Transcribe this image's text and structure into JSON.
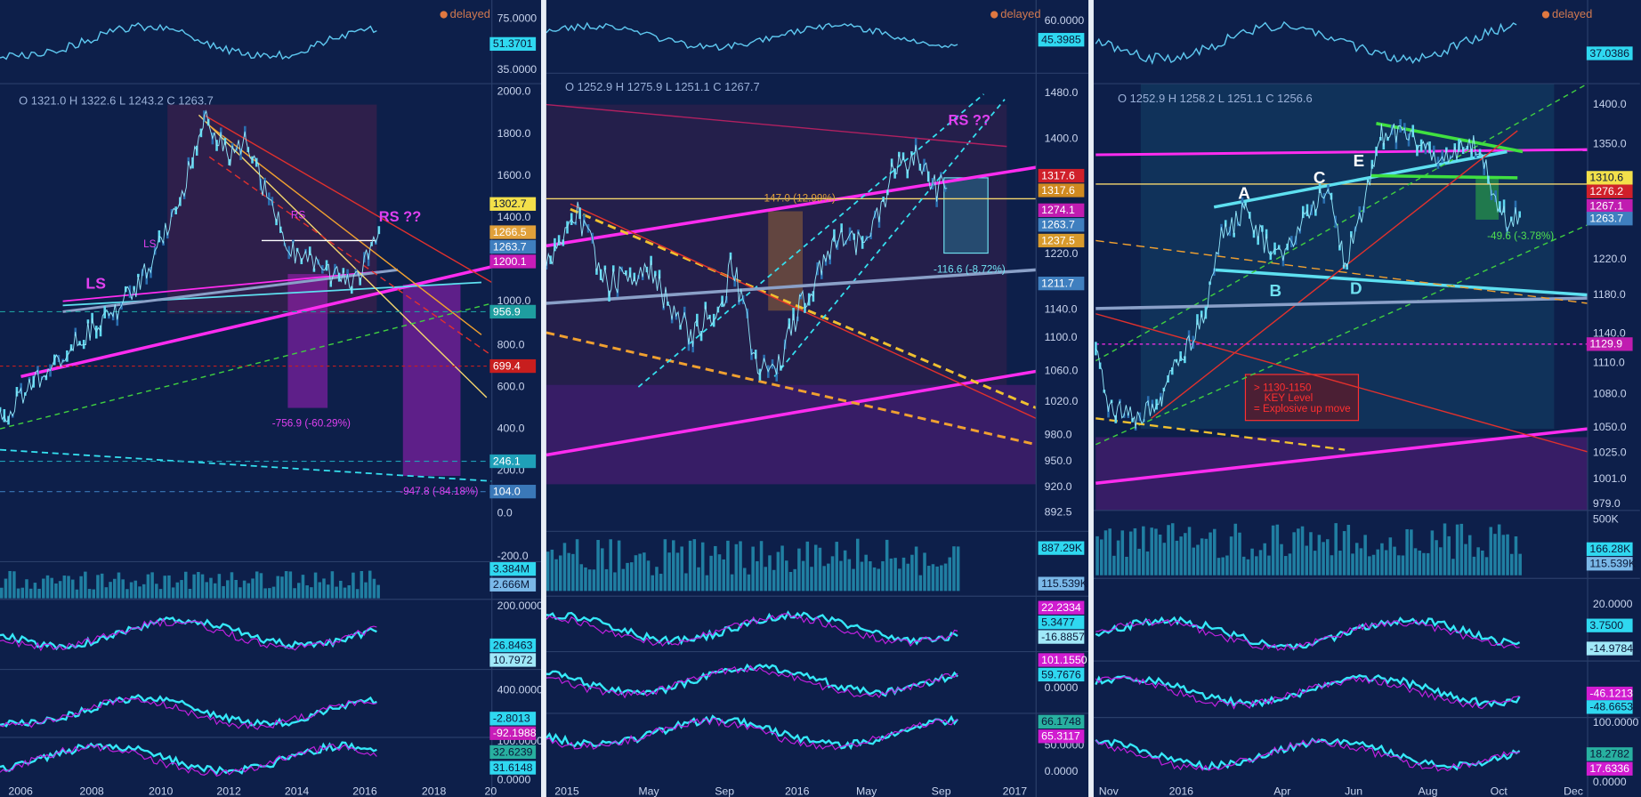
{
  "panels": [
    {
      "ohlc": "O 1321.0  H 1322.6  L 1243.2  C 1263.7",
      "delayed": "delayed",
      "axis_labels": [
        "75.0000",
        "35.0000",
        "2000.0",
        "1800.0",
        "1600.0",
        "1400.0",
        "1000.0",
        "800.0",
        "600.0",
        "400.0",
        "200.0",
        "0.0",
        "-200.0",
        "200.0000",
        "400.0000",
        "100.0000",
        "0.0000"
      ],
      "tags": [
        {
          "text": "1302.7",
          "color": "#f3e04a"
        },
        {
          "text": "1266.5",
          "color": "#e0a03a"
        },
        {
          "text": "1263.7",
          "color": "#3f7fbf"
        },
        {
          "text": "1200.1",
          "color": "#c81cb8"
        },
        {
          "text": "956.9",
          "color": "#1e9ea0"
        },
        {
          "text": "699.4",
          "color": "#c81e1e"
        },
        {
          "text": "246.1",
          "color": "#1fa0b8"
        },
        {
          "text": "104.0",
          "color": "#3a78b8"
        },
        {
          "text": "51.3701",
          "color": "#2fd8f0"
        },
        {
          "text": "3.384M",
          "color": "#2fd8f0"
        },
        {
          "text": "2.666M",
          "color": "#7ab8e8"
        },
        {
          "text": "26.8463",
          "color": "#2fd8f0"
        },
        {
          "text": "10.7972",
          "color": "#a0e8f8"
        },
        {
          "text": "-2.8013",
          "color": "#2fd8f0"
        },
        {
          "text": "-92.1988",
          "color": "#c81cb8"
        },
        {
          "text": "32.6239",
          "color": "#28b0a0"
        },
        {
          "text": "31.6148",
          "color": "#2fd8f0"
        }
      ],
      "annotations": [
        {
          "text": "LS",
          "color": "#e040f0"
        },
        {
          "text": "LS",
          "color": "#e040f0"
        },
        {
          "text": "RS",
          "color": "#e040f0"
        },
        {
          "text": "RS ??",
          "color": "#e040f0"
        },
        {
          "text": "-756.9 (-60.29%)",
          "color": "#e040f0"
        },
        {
          "text": "-947.8 (-84.18%)",
          "color": "#e040f0"
        }
      ],
      "time_labels": [
        "2006",
        "2008",
        "2010",
        "2012",
        "2014",
        "2016",
        "2018",
        "20"
      ]
    },
    {
      "ohlc": "O 1252.9  H 1275.9  L 1251.1  C 1267.7",
      "delayed": "delayed",
      "axis_labels": [
        "60.0000",
        "1480.0",
        "1400.0",
        "1220.0",
        "1140.0",
        "1100.0",
        "1060.0",
        "1020.0",
        "980.0",
        "950.0",
        "920.0",
        "892.5",
        "0.0000",
        "50.0000",
        "0.0000"
      ],
      "tags": [
        {
          "text": "1317.6",
          "color": "#d0202a"
        },
        {
          "text": "1317.6",
          "color": "#d08a20"
        },
        {
          "text": "1274.1",
          "color": "#c01cb0"
        },
        {
          "text": "1263.7",
          "color": "#3f7fbf"
        },
        {
          "text": "1237.5",
          "color": "#d89a2c"
        },
        {
          "text": "1211.7",
          "color": "#3f7fbf"
        },
        {
          "text": "45.3985",
          "color": "#2fd8f0"
        },
        {
          "text": "887.29K",
          "color": "#2fd8f0"
        },
        {
          "text": "115.539K",
          "color": "#7ab8e8"
        },
        {
          "text": "22.2334",
          "color": "#d01cd0"
        },
        {
          "text": "5.3477",
          "color": "#2fd8f0"
        },
        {
          "text": "-16.8857",
          "color": "#a0e8f8"
        },
        {
          "text": "101.1550",
          "color": "#d01cd0"
        },
        {
          "text": "59.7676",
          "color": "#2fd8f0"
        },
        {
          "text": "66.1748",
          "color": "#28b0a0"
        },
        {
          "text": "65.3117",
          "color": "#d01cd0"
        }
      ],
      "annotations": [
        {
          "text": "RS ??",
          "color": "#e040f0"
        },
        {
          "text": "147.0 (12.99%)",
          "color": "#e0a03a"
        },
        {
          "text": "-116.6 (-8.72%)",
          "color": "#6fe0f0"
        }
      ],
      "time_labels": [
        "2015",
        "May",
        "Sep",
        "2016",
        "May",
        "Sep",
        "2017"
      ]
    },
    {
      "ohlc": "O 1252.9  H 1258.2  L 1251.1  C 1256.6",
      "delayed": "delayed",
      "axis_labels": [
        "1400.0",
        "1350.0",
        "1220.0",
        "1180.0",
        "1140.0",
        "1110.0",
        "1080.0",
        "1050.0",
        "1025.0",
        "1001.0",
        "979.0",
        "500K",
        "20.0000",
        "100.0000",
        "0.0000"
      ],
      "tags": [
        {
          "text": "1310.6",
          "color": "#f3e04a"
        },
        {
          "text": "1276.2",
          "color": "#d0202a"
        },
        {
          "text": "1267.1",
          "color": "#c01cb0"
        },
        {
          "text": "1263.7",
          "color": "#3f7fbf"
        },
        {
          "text": "1129.9",
          "color": "#c01cb0"
        },
        {
          "text": "37.0386",
          "color": "#2fd8f0"
        },
        {
          "text": "166.28K",
          "color": "#2fd8f0"
        },
        {
          "text": "115.539K",
          "color": "#7ab8e8"
        },
        {
          "text": "3.7500",
          "color": "#2fd8f0"
        },
        {
          "text": "-14.9784",
          "color": "#a0e8f8"
        },
        {
          "text": "-46.1213",
          "color": "#d01cd0"
        },
        {
          "text": "-48.6653",
          "color": "#2fd8f0"
        },
        {
          "text": "18.2782",
          "color": "#28b0a0"
        },
        {
          "text": "17.6336",
          "color": "#d01cd0"
        }
      ],
      "annotations": [
        {
          "text": "A",
          "color": "#ffffff"
        },
        {
          "text": "B",
          "color": "#6fe0f0"
        },
        {
          "text": "C",
          "color": "#ffffff"
        },
        {
          "text": "D",
          "color": "#6fe0f0"
        },
        {
          "text": "E",
          "color": "#ffffff"
        },
        {
          "text": "-49.6 (-3.78%)",
          "color": "#50e050"
        },
        {
          "text": "> 1130-1150",
          "color": "#ff3030"
        },
        {
          "text": "KEY Level",
          "color": "#ff3030"
        },
        {
          "text": "= Explosive up move",
          "color": "#ff3030"
        }
      ],
      "time_labels": [
        "Nov",
        "2016",
        "Apr",
        "Jun",
        "Aug",
        "Oct",
        "Dec"
      ]
    }
  ]
}
